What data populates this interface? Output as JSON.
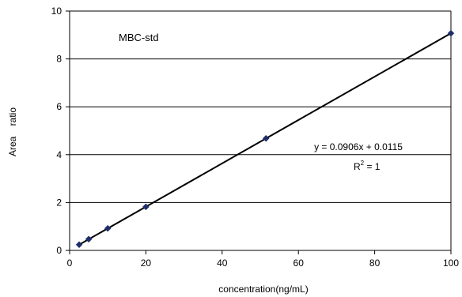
{
  "chart_data": {
    "type": "scatter",
    "title": "",
    "xlabel": "concentration(ng/mL)",
    "ylabel": "Area ratio",
    "xlim": [
      0,
      100
    ],
    "ylim": [
      0,
      10
    ],
    "x_ticks": [
      "0",
      "20",
      "40",
      "60",
      "80",
      "100"
    ],
    "y_ticks": [
      "0",
      "2",
      "4",
      "6",
      "8",
      "10"
    ],
    "grid": "horizontal",
    "series": [
      {
        "x": [
          2.5,
          5,
          10,
          20,
          51.5,
          100
        ],
        "y": [
          0.24,
          0.47,
          0.92,
          1.82,
          4.68,
          9.07
        ],
        "marker": "diamond",
        "color": "#1f2d6b"
      }
    ],
    "trendline": {
      "slope": 0.0906,
      "intercept": 0.0115,
      "x_range": [
        2.5,
        100
      ],
      "color": "#000000"
    },
    "annotations": {
      "label": "MBC-std",
      "equation": "y = 0.0906x + 0.0115",
      "r2_prefix": "R",
      "r2_sup": "2",
      "r2_suffix": " = 1"
    }
  }
}
